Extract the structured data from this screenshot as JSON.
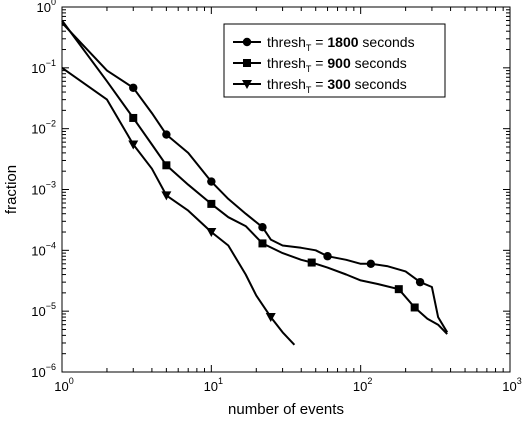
{
  "chart_data": {
    "type": "line",
    "xscale": "log",
    "yscale": "log",
    "xlim": [
      1,
      1000
    ],
    "ylim": [
      1e-06,
      1
    ],
    "xlabel": "number of events",
    "ylabel": "fraction",
    "x_ticks": [
      {
        "value": 1,
        "base": "10",
        "exp": "0"
      },
      {
        "value": 10,
        "base": "10",
        "exp": "1"
      },
      {
        "value": 100,
        "base": "10",
        "exp": "2"
      },
      {
        "value": 1000,
        "base": "10",
        "exp": "3"
      }
    ],
    "y_ticks": [
      {
        "value": 1e-06,
        "base": "10",
        "exp": "−6"
      },
      {
        "value": 1e-05,
        "base": "10",
        "exp": "−5"
      },
      {
        "value": 0.0001,
        "base": "10",
        "exp": "−4"
      },
      {
        "value": 0.001,
        "base": "10",
        "exp": "−3"
      },
      {
        "value": 0.01,
        "base": "10",
        "exp": "−2"
      },
      {
        "value": 0.1,
        "base": "10",
        "exp": "−1"
      },
      {
        "value": 1,
        "base": "10",
        "exp": "0"
      }
    ],
    "grid": false,
    "legend_position": "top-right",
    "series": [
      {
        "name_prefix": "thresh",
        "name_subscript": "T",
        "name_middle": " = ",
        "name_bold": "1800",
        "name_suffix": " seconds",
        "marker": "circle",
        "color": "#000000",
        "x": [
          1,
          2,
          3,
          4,
          5,
          7,
          10,
          13,
          17,
          22,
          25,
          30,
          40,
          50,
          60,
          80,
          100,
          117,
          150,
          200,
          250,
          300,
          330,
          380
        ],
        "y": [
          0.55,
          0.09,
          0.047,
          0.018,
          0.008,
          0.004,
          0.00135,
          0.0007,
          0.0004,
          0.00024,
          0.00015,
          0.00012,
          0.00011,
          0.0001,
          8e-05,
          7e-05,
          6e-05,
          6e-05,
          5.5e-05,
          4.5e-05,
          3e-05,
          2.5e-05,
          8e-06,
          4.5e-06
        ],
        "markers": [
          {
            "x": 3,
            "y": 0.047
          },
          {
            "x": 5,
            "y": 0.008
          },
          {
            "x": 10,
            "y": 0.00135
          },
          {
            "x": 22,
            "y": 0.00024
          },
          {
            "x": 60,
            "y": 8e-05
          },
          {
            "x": 117,
            "y": 6e-05
          },
          {
            "x": 250,
            "y": 3e-05
          }
        ]
      },
      {
        "name_prefix": "thresh",
        "name_subscript": "T",
        "name_middle": " = ",
        "name_bold": "900",
        "name_suffix": " seconds",
        "marker": "square",
        "color": "#000000",
        "x": [
          1,
          2,
          3,
          4,
          5,
          7,
          10,
          13,
          17,
          22,
          30,
          40,
          47,
          60,
          80,
          100,
          130,
          180,
          230,
          280,
          330,
          380
        ],
        "y": [
          0.6,
          0.06,
          0.015,
          0.0055,
          0.0025,
          0.0012,
          0.00058,
          0.00035,
          0.00025,
          0.00013,
          9e-05,
          7e-05,
          6.3e-05,
          5.2e-05,
          4e-05,
          3.2e-05,
          2.8e-05,
          2.3e-05,
          1.15e-05,
          7.5e-06,
          6e-06,
          4.2e-06
        ],
        "markers": [
          {
            "x": 3,
            "y": 0.015
          },
          {
            "x": 5,
            "y": 0.0025
          },
          {
            "x": 10,
            "y": 0.00058
          },
          {
            "x": 22,
            "y": 0.00013
          },
          {
            "x": 47,
            "y": 6.3e-05
          },
          {
            "x": 180,
            "y": 2.3e-05
          },
          {
            "x": 230,
            "y": 1.15e-05
          }
        ]
      },
      {
        "name_prefix": "thresh",
        "name_subscript": "T",
        "name_middle": " = ",
        "name_bold": "300",
        "name_suffix": " seconds",
        "marker": "triangle-down",
        "color": "#000000",
        "x": [
          1,
          2,
          3,
          4,
          5,
          7,
          10,
          13,
          17,
          20,
          25,
          30,
          36
        ],
        "y": [
          0.1,
          0.03,
          0.0055,
          0.0022,
          0.0008,
          0.00045,
          0.0002,
          0.00012,
          4e-05,
          1.8e-05,
          8e-06,
          4.5e-06,
          2.8e-06
        ],
        "markers": [
          {
            "x": 3,
            "y": 0.0055
          },
          {
            "x": 5,
            "y": 0.0008
          },
          {
            "x": 10,
            "y": 0.0002
          },
          {
            "x": 25,
            "y": 8e-06
          }
        ]
      }
    ]
  }
}
